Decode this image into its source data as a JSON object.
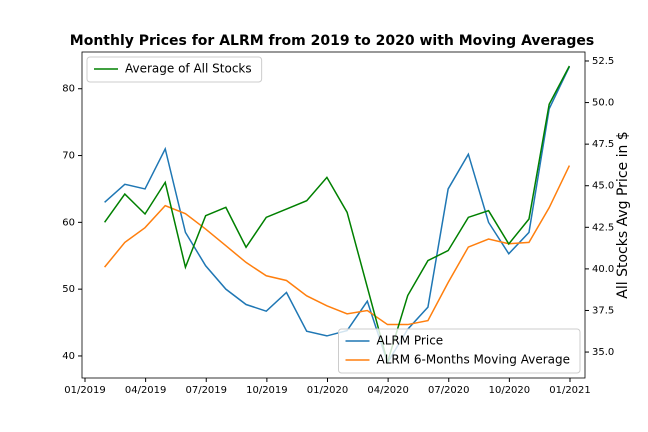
{
  "chart_data": {
    "type": "line",
    "title": "Monthly Prices for ALRM from 2019 to 2020 with Moving Averages",
    "y2_label": "All Stocks Avg Price in $",
    "x": [
      "01/2019",
      "02/2019",
      "03/2019",
      "04/2019",
      "05/2019",
      "06/2019",
      "07/2019",
      "08/2019",
      "09/2019",
      "10/2019",
      "11/2019",
      "12/2019",
      "01/2020",
      "02/2020",
      "03/2020",
      "04/2020",
      "05/2020",
      "06/2020",
      "07/2020",
      "08/2020",
      "09/2020",
      "10/2020",
      "11/2020",
      "12/2020"
    ],
    "series": [
      {
        "name": "ALRM Price",
        "color": "#1f77b4",
        "values": [
          63,
          65.7,
          65,
          71,
          58.5,
          53.5,
          50,
          47.7,
          46.7,
          49.5,
          43.7,
          43,
          43.8,
          48.2,
          39,
          44,
          47.3,
          65,
          70.2,
          60,
          55.3,
          58.5,
          77,
          83.3
        ]
      },
      {
        "name": "ALRM 6-Months Moving Average",
        "color": "#ff7f0e",
        "values": [
          53.3,
          57,
          59.2,
          62.5,
          61.3,
          59,
          56.5,
          54,
          52,
          51.3,
          49,
          47.5,
          46.3,
          46.8,
          44.7,
          44.7,
          45.3,
          51,
          56.3,
          57.5,
          56.8,
          57,
          62.2,
          68.5
        ]
      },
      {
        "name": "Average of All Stocks",
        "color": "#008000",
        "axis": "y2",
        "values": [
          42.8,
          44.5,
          43.3,
          45.2,
          40.1,
          43.2,
          43.7,
          41.3,
          43.1,
          43.6,
          44.1,
          45.5,
          43.4,
          38.9,
          34.4,
          38.4,
          40.5,
          41.1,
          43.1,
          43.5,
          41.5,
          43.0,
          49.9,
          52.2
        ]
      }
    ],
    "xticks": [
      "01/2019",
      "04/2019",
      "07/2019",
      "10/2019",
      "01/2020",
      "04/2020",
      "07/2020",
      "10/2020",
      "01/2021"
    ],
    "ylim": [
      36.7,
      85.5
    ],
    "yticks": [
      40,
      50,
      60,
      70,
      80
    ],
    "y2lim": [
      33.44,
      53.04
    ],
    "y2ticks": [
      {
        "value": 35,
        "label": "35.0"
      },
      37.5,
      {
        "value": 40,
        "label": "40.0"
      },
      42.5,
      {
        "value": 45,
        "label": "45.0"
      },
      47.5,
      {
        "value": 50,
        "label": "50.0"
      },
      52.5
    ],
    "legend_y": "lower right",
    "legend_y2": "upper left"
  }
}
